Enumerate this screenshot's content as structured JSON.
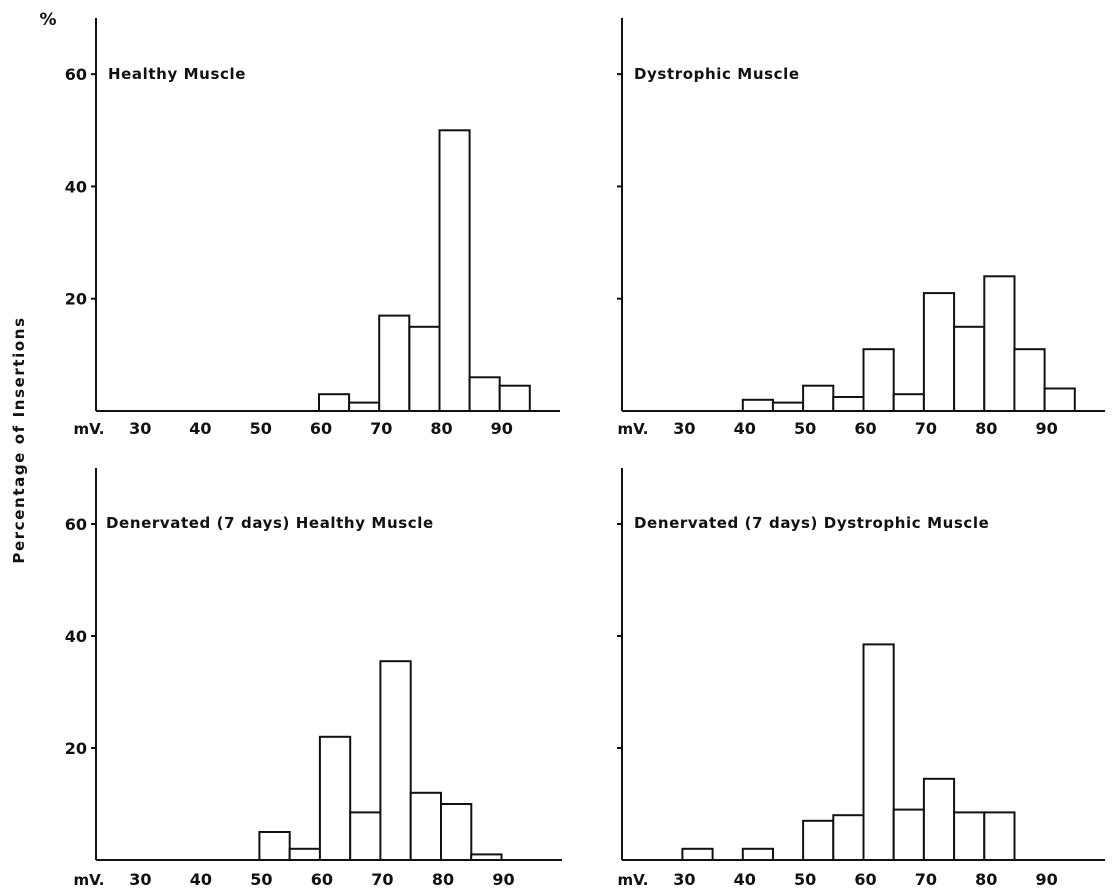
{
  "figure": {
    "y_axis_label": "Percentage of Insertions",
    "y_unit_label": "%",
    "colors": {
      "ink": "#111111",
      "bar_fill": "#ffffff",
      "background": "#ffffff"
    }
  },
  "chart_data": [
    {
      "type": "bar",
      "title": "Healthy Muscle",
      "xlabel": "mV.",
      "xticks": [
        30,
        40,
        50,
        60,
        70,
        80,
        90
      ],
      "yticks": [
        20,
        40,
        60
      ],
      "show_ytick_labels": true,
      "xlim": [
        23,
        100
      ],
      "ylim": [
        0,
        70
      ],
      "bins": [
        {
          "from": 60,
          "to": 65,
          "value": 3
        },
        {
          "from": 65,
          "to": 70,
          "value": 1.5
        },
        {
          "from": 70,
          "to": 75,
          "value": 17
        },
        {
          "from": 75,
          "to": 80,
          "value": 15
        },
        {
          "from": 80,
          "to": 85,
          "value": 50
        },
        {
          "from": 85,
          "to": 90,
          "value": 6
        },
        {
          "from": 90,
          "to": 95,
          "value": 4.5
        }
      ]
    },
    {
      "type": "bar",
      "title": "Dystrophic Muscle",
      "xlabel": "mV.",
      "xticks": [
        30,
        40,
        50,
        60,
        70,
        80,
        90
      ],
      "yticks": [
        20,
        40,
        60
      ],
      "show_ytick_labels": false,
      "xlim": [
        20,
        100
      ],
      "ylim": [
        0,
        70
      ],
      "bins": [
        {
          "from": 40,
          "to": 45,
          "value": 2
        },
        {
          "from": 45,
          "to": 50,
          "value": 1.5
        },
        {
          "from": 50,
          "to": 55,
          "value": 4.5
        },
        {
          "from": 55,
          "to": 60,
          "value": 2.5
        },
        {
          "from": 60,
          "to": 65,
          "value": 11
        },
        {
          "from": 65,
          "to": 70,
          "value": 3
        },
        {
          "from": 70,
          "to": 75,
          "value": 21
        },
        {
          "from": 75,
          "to": 80,
          "value": 15
        },
        {
          "from": 80,
          "to": 85,
          "value": 24
        },
        {
          "from": 85,
          "to": 90,
          "value": 11
        },
        {
          "from": 90,
          "to": 95,
          "value": 4
        }
      ]
    },
    {
      "type": "bar",
      "title": "Denervated (7 days) Healthy Muscle",
      "xlabel": "mV.",
      "xticks": [
        30,
        40,
        50,
        60,
        70,
        80,
        90
      ],
      "yticks": [
        20,
        40,
        60
      ],
      "show_ytick_labels": true,
      "xlim": [
        23,
        100
      ],
      "ylim": [
        0,
        70
      ],
      "bins": [
        {
          "from": 50,
          "to": 55,
          "value": 5
        },
        {
          "from": 55,
          "to": 60,
          "value": 2
        },
        {
          "from": 60,
          "to": 65,
          "value": 22
        },
        {
          "from": 65,
          "to": 70,
          "value": 8.5
        },
        {
          "from": 70,
          "to": 75,
          "value": 35.5
        },
        {
          "from": 75,
          "to": 80,
          "value": 12
        },
        {
          "from": 80,
          "to": 85,
          "value": 10
        },
        {
          "from": 85,
          "to": 90,
          "value": 1
        }
      ]
    },
    {
      "type": "bar",
      "title": "Denervated (7 days) Dystrophic Muscle",
      "xlabel": "mV.",
      "xticks": [
        30,
        40,
        50,
        60,
        70,
        80,
        90
      ],
      "yticks": [
        20,
        40,
        60
      ],
      "show_ytick_labels": false,
      "xlim": [
        20,
        100
      ],
      "ylim": [
        0,
        70
      ],
      "bins": [
        {
          "from": 30,
          "to": 35,
          "value": 2
        },
        {
          "from": 40,
          "to": 45,
          "value": 2
        },
        {
          "from": 50,
          "to": 55,
          "value": 7
        },
        {
          "from": 55,
          "to": 60,
          "value": 8
        },
        {
          "from": 60,
          "to": 65,
          "value": 38.5
        },
        {
          "from": 65,
          "to": 70,
          "value": 9
        },
        {
          "from": 70,
          "to": 75,
          "value": 14.5
        },
        {
          "from": 75,
          "to": 80,
          "value": 8.5
        },
        {
          "from": 80,
          "to": 85,
          "value": 8.5
        }
      ]
    }
  ]
}
